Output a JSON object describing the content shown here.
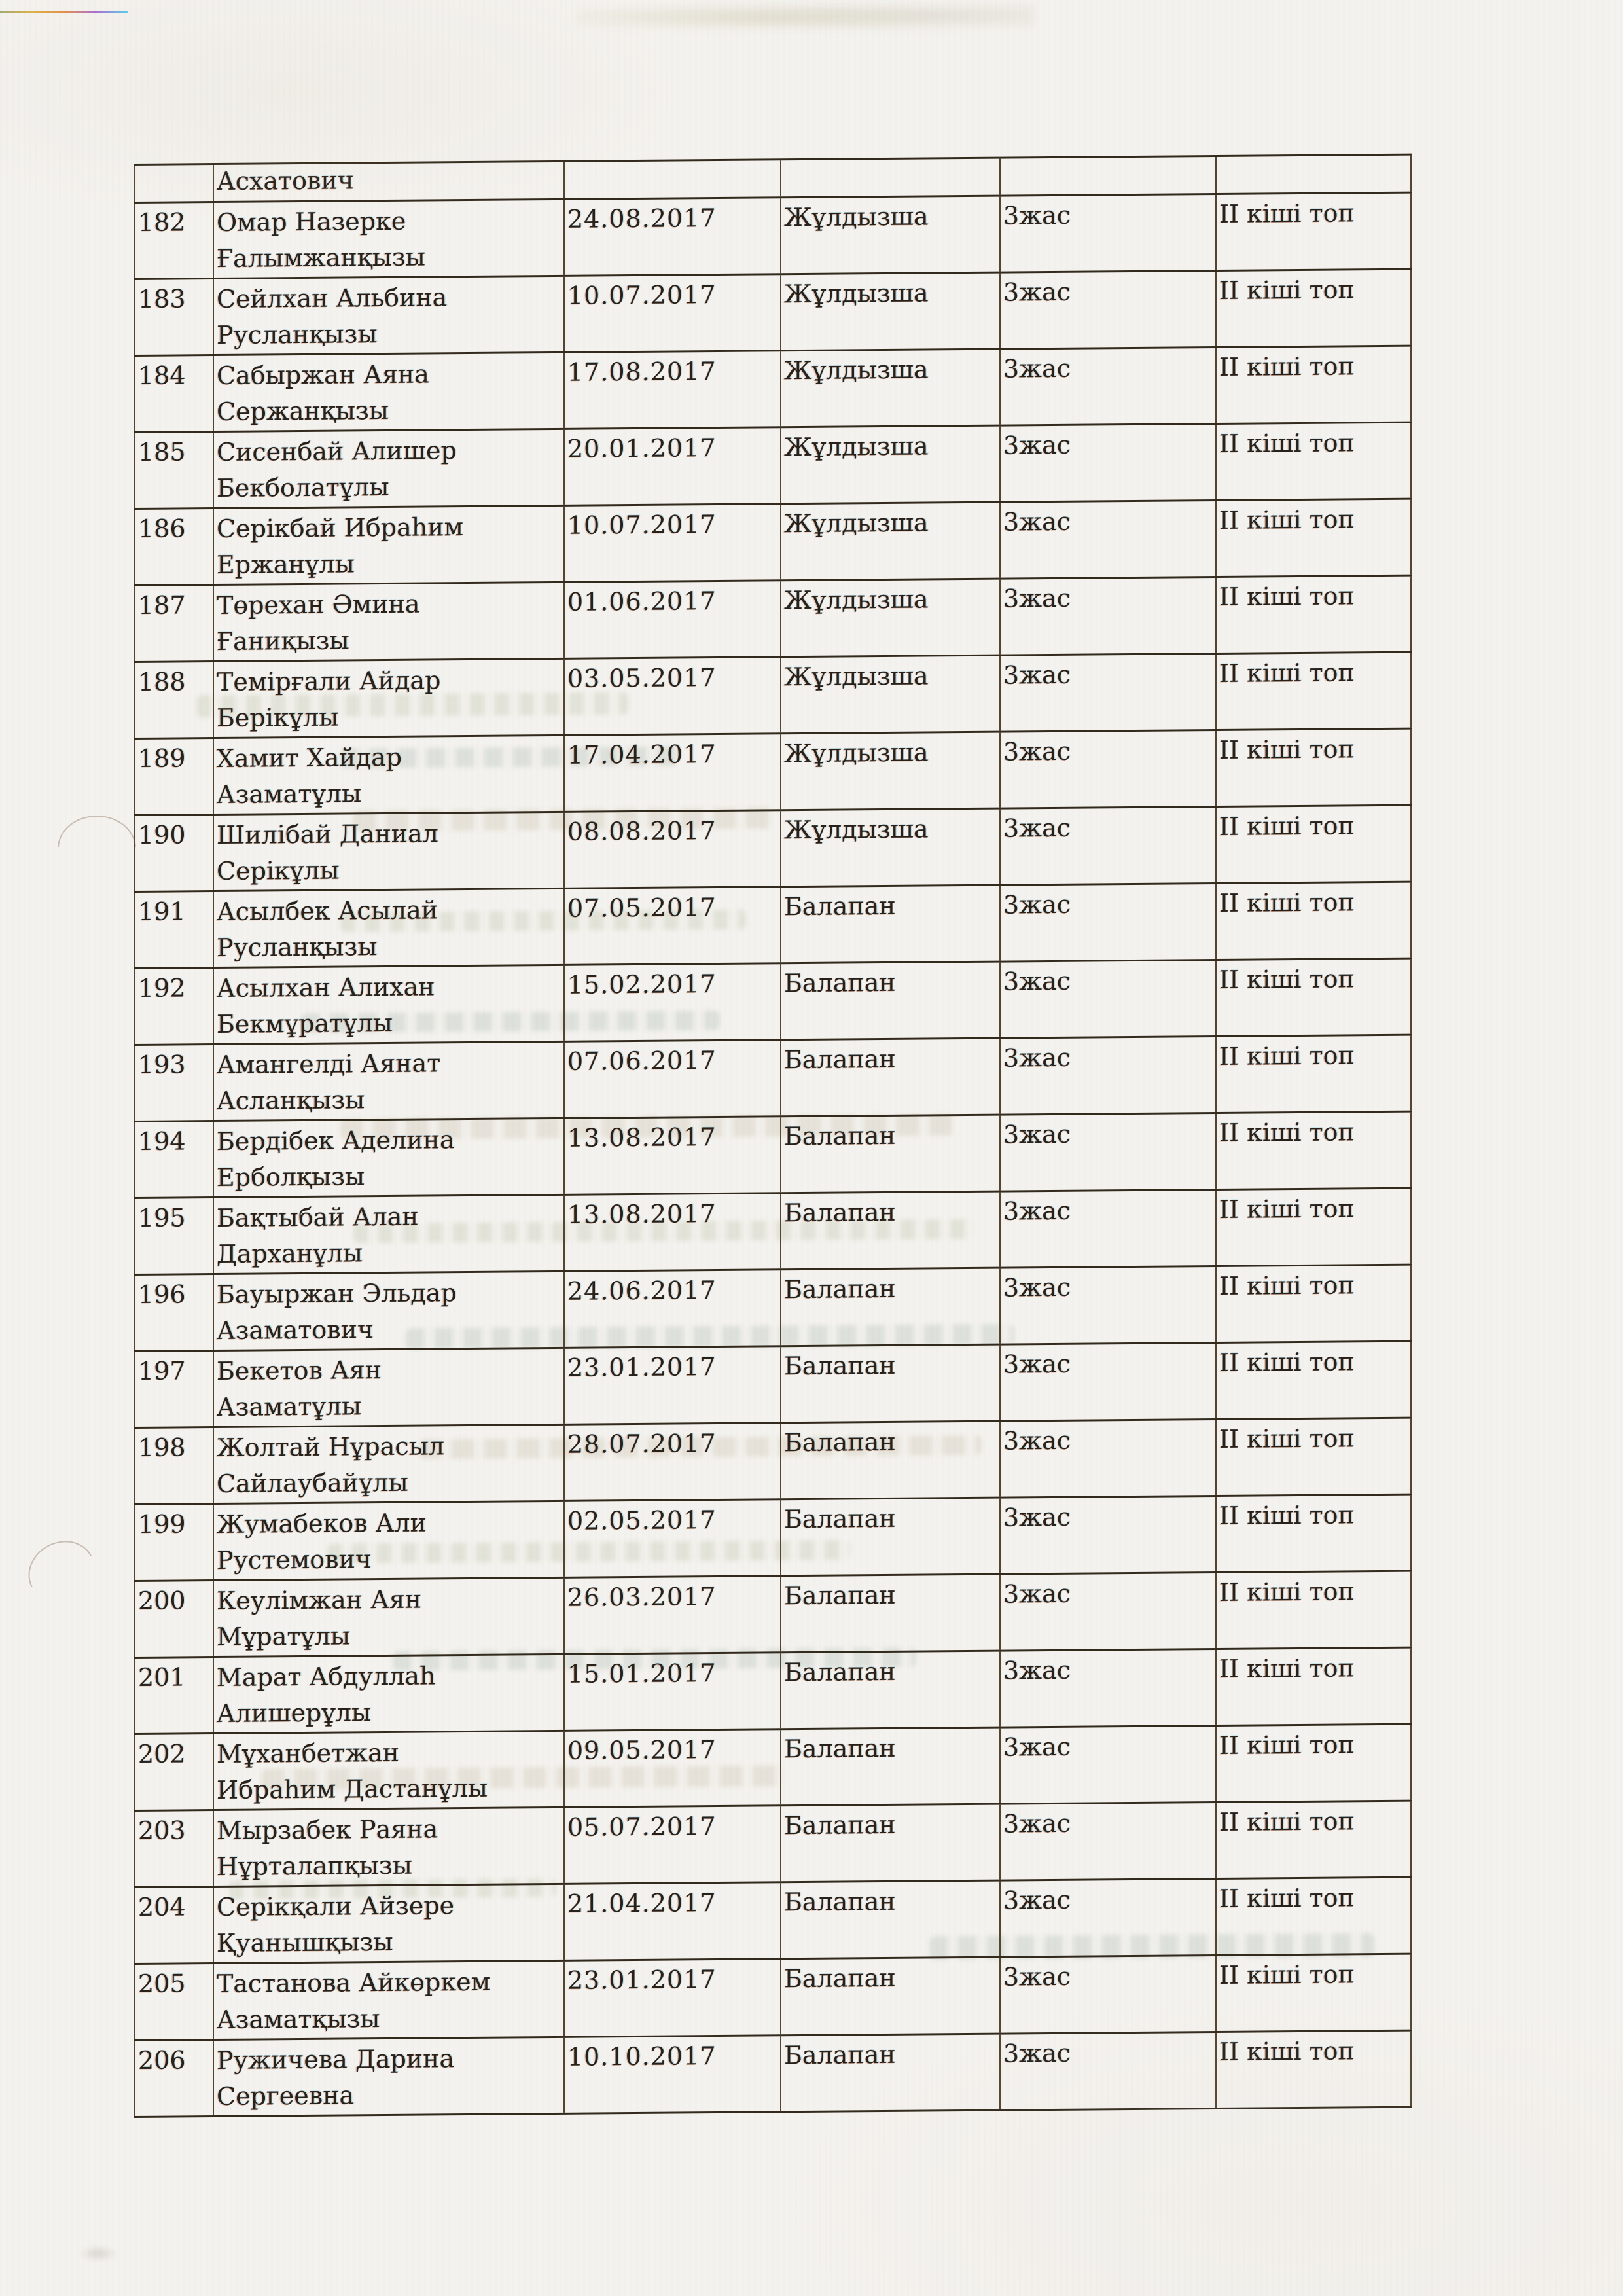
{
  "colors": {
    "paper": "#f4f2ee",
    "ink": "#28211a",
    "table_line_horizontal": "#332a1e",
    "table_line_vertical": "#55452f"
  },
  "document": {
    "language": "kk",
    "continuation_row": {
      "name_fragment": "Асхатович"
    },
    "rows": [
      {
        "num": "182",
        "name_line1": "Омар Назерке",
        "name_line2": "Ғалымжанқызы",
        "birth_date": "24.08.2017",
        "group": "Жұлдызша",
        "age": "3жас",
        "subgroup": "II кіші топ"
      },
      {
        "num": "183",
        "name_line1": "Сейлхан Альбина",
        "name_line2": "Русланқызы",
        "birth_date": "10.07.2017",
        "group": "Жұлдызша",
        "age": "3жас",
        "subgroup": "II кіші топ"
      },
      {
        "num": "184",
        "name_line1": "Сабыржан Аяна",
        "name_line2": "Сержанқызы",
        "birth_date": "17.08.2017",
        "group": "Жұлдызша",
        "age": "3жас",
        "subgroup": "II кіші топ"
      },
      {
        "num": "185",
        "name_line1": "Сисенбай Алишер",
        "name_line2": "Бекболатұлы",
        "birth_date": "20.01.2017",
        "group": "Жұлдызша",
        "age": "3жас",
        "subgroup": "II кіші топ"
      },
      {
        "num": "186",
        "name_line1": "Серікбай Ибраһим",
        "name_line2": "Ержанұлы",
        "birth_date": "10.07.2017",
        "group": "Жұлдызша",
        "age": "3жас",
        "subgroup": "II кіші топ"
      },
      {
        "num": "187",
        "name_line1": "Төрехан Әмина",
        "name_line2": "Ғаниқызы",
        "birth_date": "01.06.2017",
        "group": "Жұлдызша",
        "age": "3жас",
        "subgroup": "II кіші топ"
      },
      {
        "num": "188",
        "name_line1": "Темірғали Айдар",
        "name_line2": "Берікұлы",
        "birth_date": "03.05.2017",
        "group": "Жұлдызша",
        "age": "3жас",
        "subgroup": "II кіші топ"
      },
      {
        "num": "189",
        "name_line1": "Хамит Хайдар",
        "name_line2": "Азаматұлы",
        "birth_date": "17.04.2017",
        "group": "Жұлдызша",
        "age": "3жас",
        "subgroup": "II кіші топ"
      },
      {
        "num": "190",
        "name_line1": "Шилібай Даниал",
        "name_line2": "Серікұлы",
        "birth_date": "08.08.2017",
        "group": "Жұлдызша",
        "age": "3жас",
        "subgroup": "II кіші топ"
      },
      {
        "num": "191",
        "name_line1": "Асылбек Асылай",
        "name_line2": "Русланқызы",
        "birth_date": "07.05.2017",
        "group": "Балапан",
        "age": "3жас",
        "subgroup": "II кіші топ"
      },
      {
        "num": "192",
        "name_line1": "Асылхан Алихан",
        "name_line2": "Бекмұратұлы",
        "birth_date": "15.02.2017",
        "group": "Балапан",
        "age": "3жас",
        "subgroup": "II кіші топ"
      },
      {
        "num": "193",
        "name_line1": "Амангелді Аянат",
        "name_line2": "Асланқызы",
        "birth_date": "07.06.2017",
        "group": "Балапан",
        "age": "3жас",
        "subgroup": "II кіші топ"
      },
      {
        "num": "194",
        "name_line1": "Бердібек Аделина",
        "name_line2": "Ерболқызы",
        "birth_date": "13.08.2017",
        "group": "Балапан",
        "age": "3жас",
        "subgroup": "II кіші топ"
      },
      {
        "num": "195",
        "name_line1": "Бақтыбай Алан",
        "name_line2": "Дарханұлы",
        "birth_date": "13.08.2017",
        "group": "Балапан",
        "age": "3жас",
        "subgroup": "II кіші топ"
      },
      {
        "num": "196",
        "name_line1": "Бауыржан Эльдар",
        "name_line2": "Азаматович",
        "birth_date": "24.06.2017",
        "group": "Балапан",
        "age": "3жас",
        "subgroup": "II кіші топ"
      },
      {
        "num": "197",
        "name_line1": "Бекетов Аян",
        "name_line2": "Азаматұлы",
        "birth_date": "23.01.2017",
        "group": "Балапан",
        "age": "3жас",
        "subgroup": "II кіші топ"
      },
      {
        "num": "198",
        "name_line1": "Жолтай Нұрасыл",
        "name_line2": "Сайлаубайұлы",
        "birth_date": "28.07.2017",
        "group": "Балапан",
        "age": "3жас",
        "subgroup": "II кіші топ"
      },
      {
        "num": "199",
        "name_line1": "Жумабеков Али",
        "name_line2": "Рустемович",
        "birth_date": "02.05.2017",
        "group": "Балапан",
        "age": "3жас",
        "subgroup": "II кіші топ"
      },
      {
        "num": "200",
        "name_line1": "Кеулімжан Аян",
        "name_line2": "Мұратұлы",
        "birth_date": "26.03.2017",
        "group": "Балапан",
        "age": "3жас",
        "subgroup": "II кіші топ"
      },
      {
        "num": "201",
        "name_line1": "Марат Абдуллаһ",
        "name_line2": "Алишерұлы",
        "birth_date": "15.01.2017",
        "group": "Балапан",
        "age": "3жас",
        "subgroup": "II кіші топ"
      },
      {
        "num": "202",
        "name_line1": "Мұханбетжан",
        "name_line2": "Ибраһим Дастанұлы",
        "birth_date": "09.05.2017",
        "group": "Балапан",
        "age": "3жас",
        "subgroup": "II кіші топ"
      },
      {
        "num": "203",
        "name_line1": "Мырзабек Раяна",
        "name_line2": "Нұрталапқызы",
        "birth_date": "05.07.2017",
        "group": "Балапан",
        "age": "3жас",
        "subgroup": "II кіші топ"
      },
      {
        "num": "204",
        "name_line1": "Серікқали Айзере",
        "name_line2": "Қуанышқызы",
        "birth_date": "21.04.2017",
        "group": "Балапан",
        "age": "3жас",
        "subgroup": "II кіші топ"
      },
      {
        "num": "205",
        "name_line1": "Тастанова Айкөркем",
        "name_line2": "Азаматқызы",
        "birth_date": "23.01.2017",
        "group": "Балапан",
        "age": "3жас",
        "subgroup": "II кіші топ"
      },
      {
        "num": "206",
        "name_line1": "Ружичева Дарина",
        "name_line2": "Сергеевна",
        "birth_date": "10.10.2017",
        "group": "Балапан",
        "age": "3жас",
        "subgroup": "II кіші топ"
      }
    ]
  }
}
